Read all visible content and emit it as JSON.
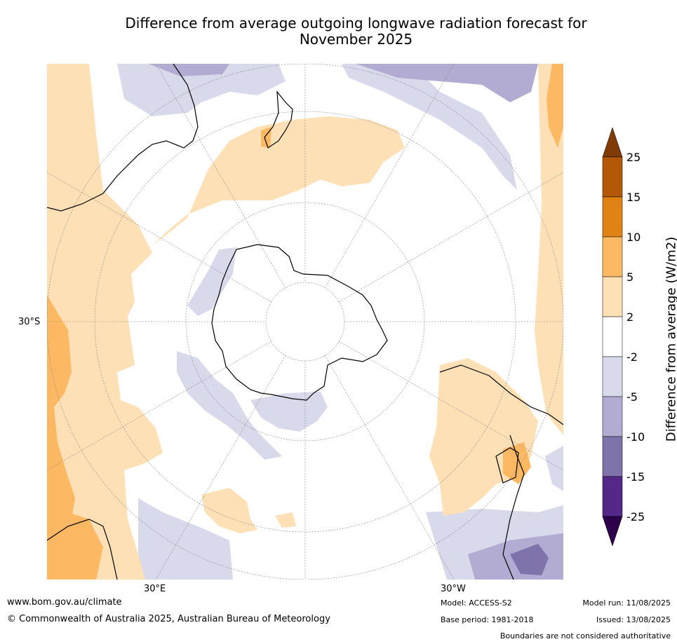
{
  "title_line1": "Difference from average outgoing longwave radiation forecast for",
  "title_line2": "November 2025",
  "lat_label": "30°S",
  "lon_labels": {
    "left": "30°E",
    "right": "30°W"
  },
  "colorbar": {
    "label": "Difference from average (W/m2)",
    "ticks": [
      "25",
      "15",
      "10",
      "5",
      "2",
      "-2",
      "-5",
      "-10",
      "-15",
      "-25"
    ],
    "colors": {
      "above_25": "#7f3b08",
      "15_25": "#b35806",
      "10_15": "#e08214",
      "5_10": "#fdb863",
      "2_5": "#fee0b6",
      "neutral": "#ffffff",
      "m2_m5": "#d8daeb",
      "m5_m10": "#b2abd2",
      "m10_m15": "#8073ac",
      "m15_m25": "#542788",
      "below_m25": "#2d004b"
    }
  },
  "footer": {
    "website": "www.bom.gov.au/climate",
    "copyright": "© Commonwealth of Australia 2025, Australian Bureau of Meteorology",
    "model": "Model: ACCESS-S2",
    "base_period": "Base period: 1981-2018",
    "model_run": "Model run: 11/08/2025",
    "issued": "Issued: 13/08/2025",
    "disclaimer": "Boundaries are not considered authoritative"
  }
}
